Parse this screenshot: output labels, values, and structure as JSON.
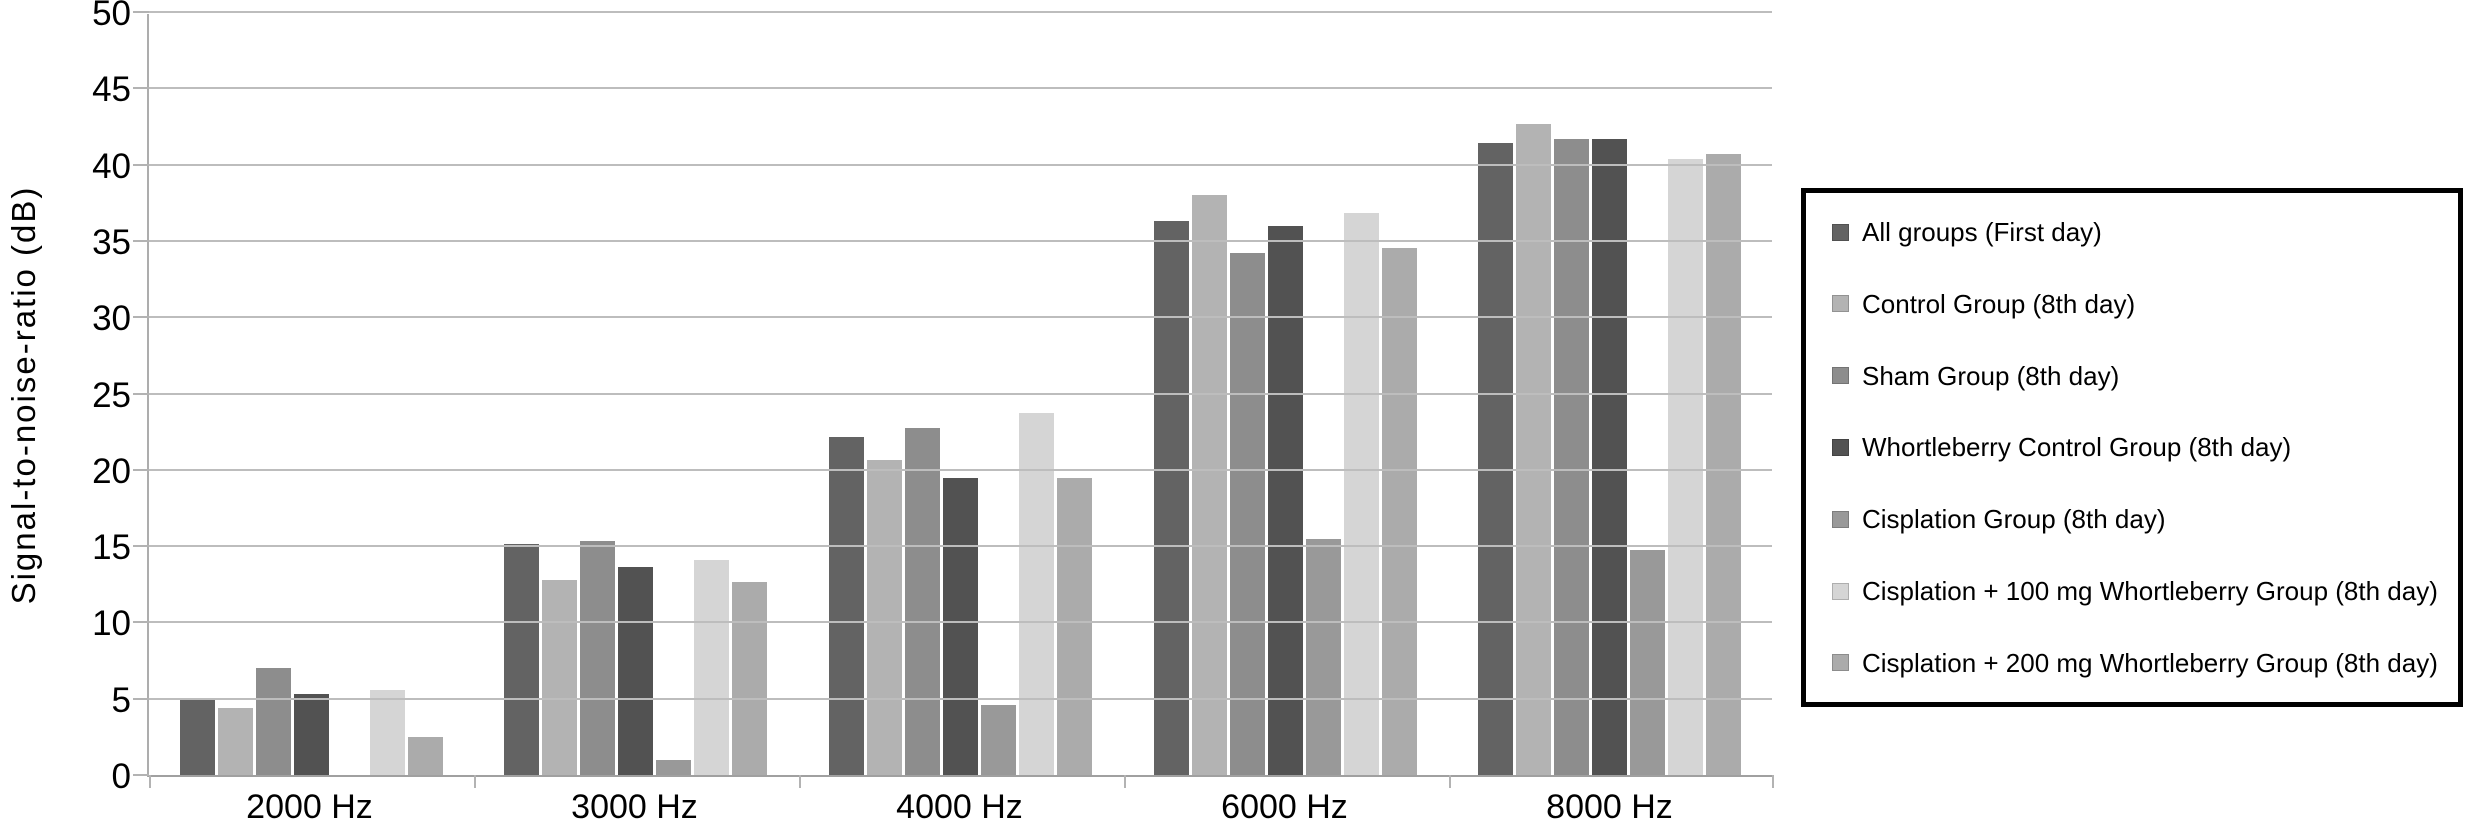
{
  "chart_data": {
    "type": "bar",
    "title": "",
    "xlabel": "",
    "ylabel": "Signal-to-noise-ratio (dB)",
    "ylim": [
      0,
      50
    ],
    "ytick_step": 5,
    "grid": true,
    "legend_position": "right",
    "categories": [
      "2000 Hz",
      "3000 Hz",
      "4000 Hz",
      "6000 Hz",
      "8000 Hz"
    ],
    "series": [
      {
        "name": "All groups (First day)",
        "color": "#636363",
        "values": [
          4.9,
          15.2,
          22.2,
          36.4,
          41.5
        ]
      },
      {
        "name": "Control Group (8th day)",
        "color": "#b3b3b3",
        "values": [
          4.4,
          12.8,
          20.7,
          38.1,
          42.8
        ]
      },
      {
        "name": "Sham Group (8th day)",
        "color": "#8d8d8d",
        "values": [
          7.0,
          15.4,
          22.8,
          34.3,
          41.8
        ]
      },
      {
        "name": "Whortleberry Control Group (8th day)",
        "color": "#525252",
        "values": [
          5.3,
          13.7,
          19.5,
          36.1,
          41.8
        ]
      },
      {
        "name": "Cisplation Group (8th day)",
        "color": "#999999",
        "values": [
          0.0,
          1.0,
          4.6,
          15.5,
          14.8
        ]
      },
      {
        "name": "Cisplation + 100 mg Whortleberry Group (8th day)",
        "color": "#d5d5d5",
        "values": [
          5.6,
          14.1,
          23.8,
          36.9,
          40.5
        ]
      },
      {
        "name": "Cisplation + 200 mg Whortleberry Group (8th day)",
        "color": "#ababab",
        "values": [
          2.5,
          12.7,
          19.5,
          34.6,
          40.8
        ]
      }
    ]
  }
}
